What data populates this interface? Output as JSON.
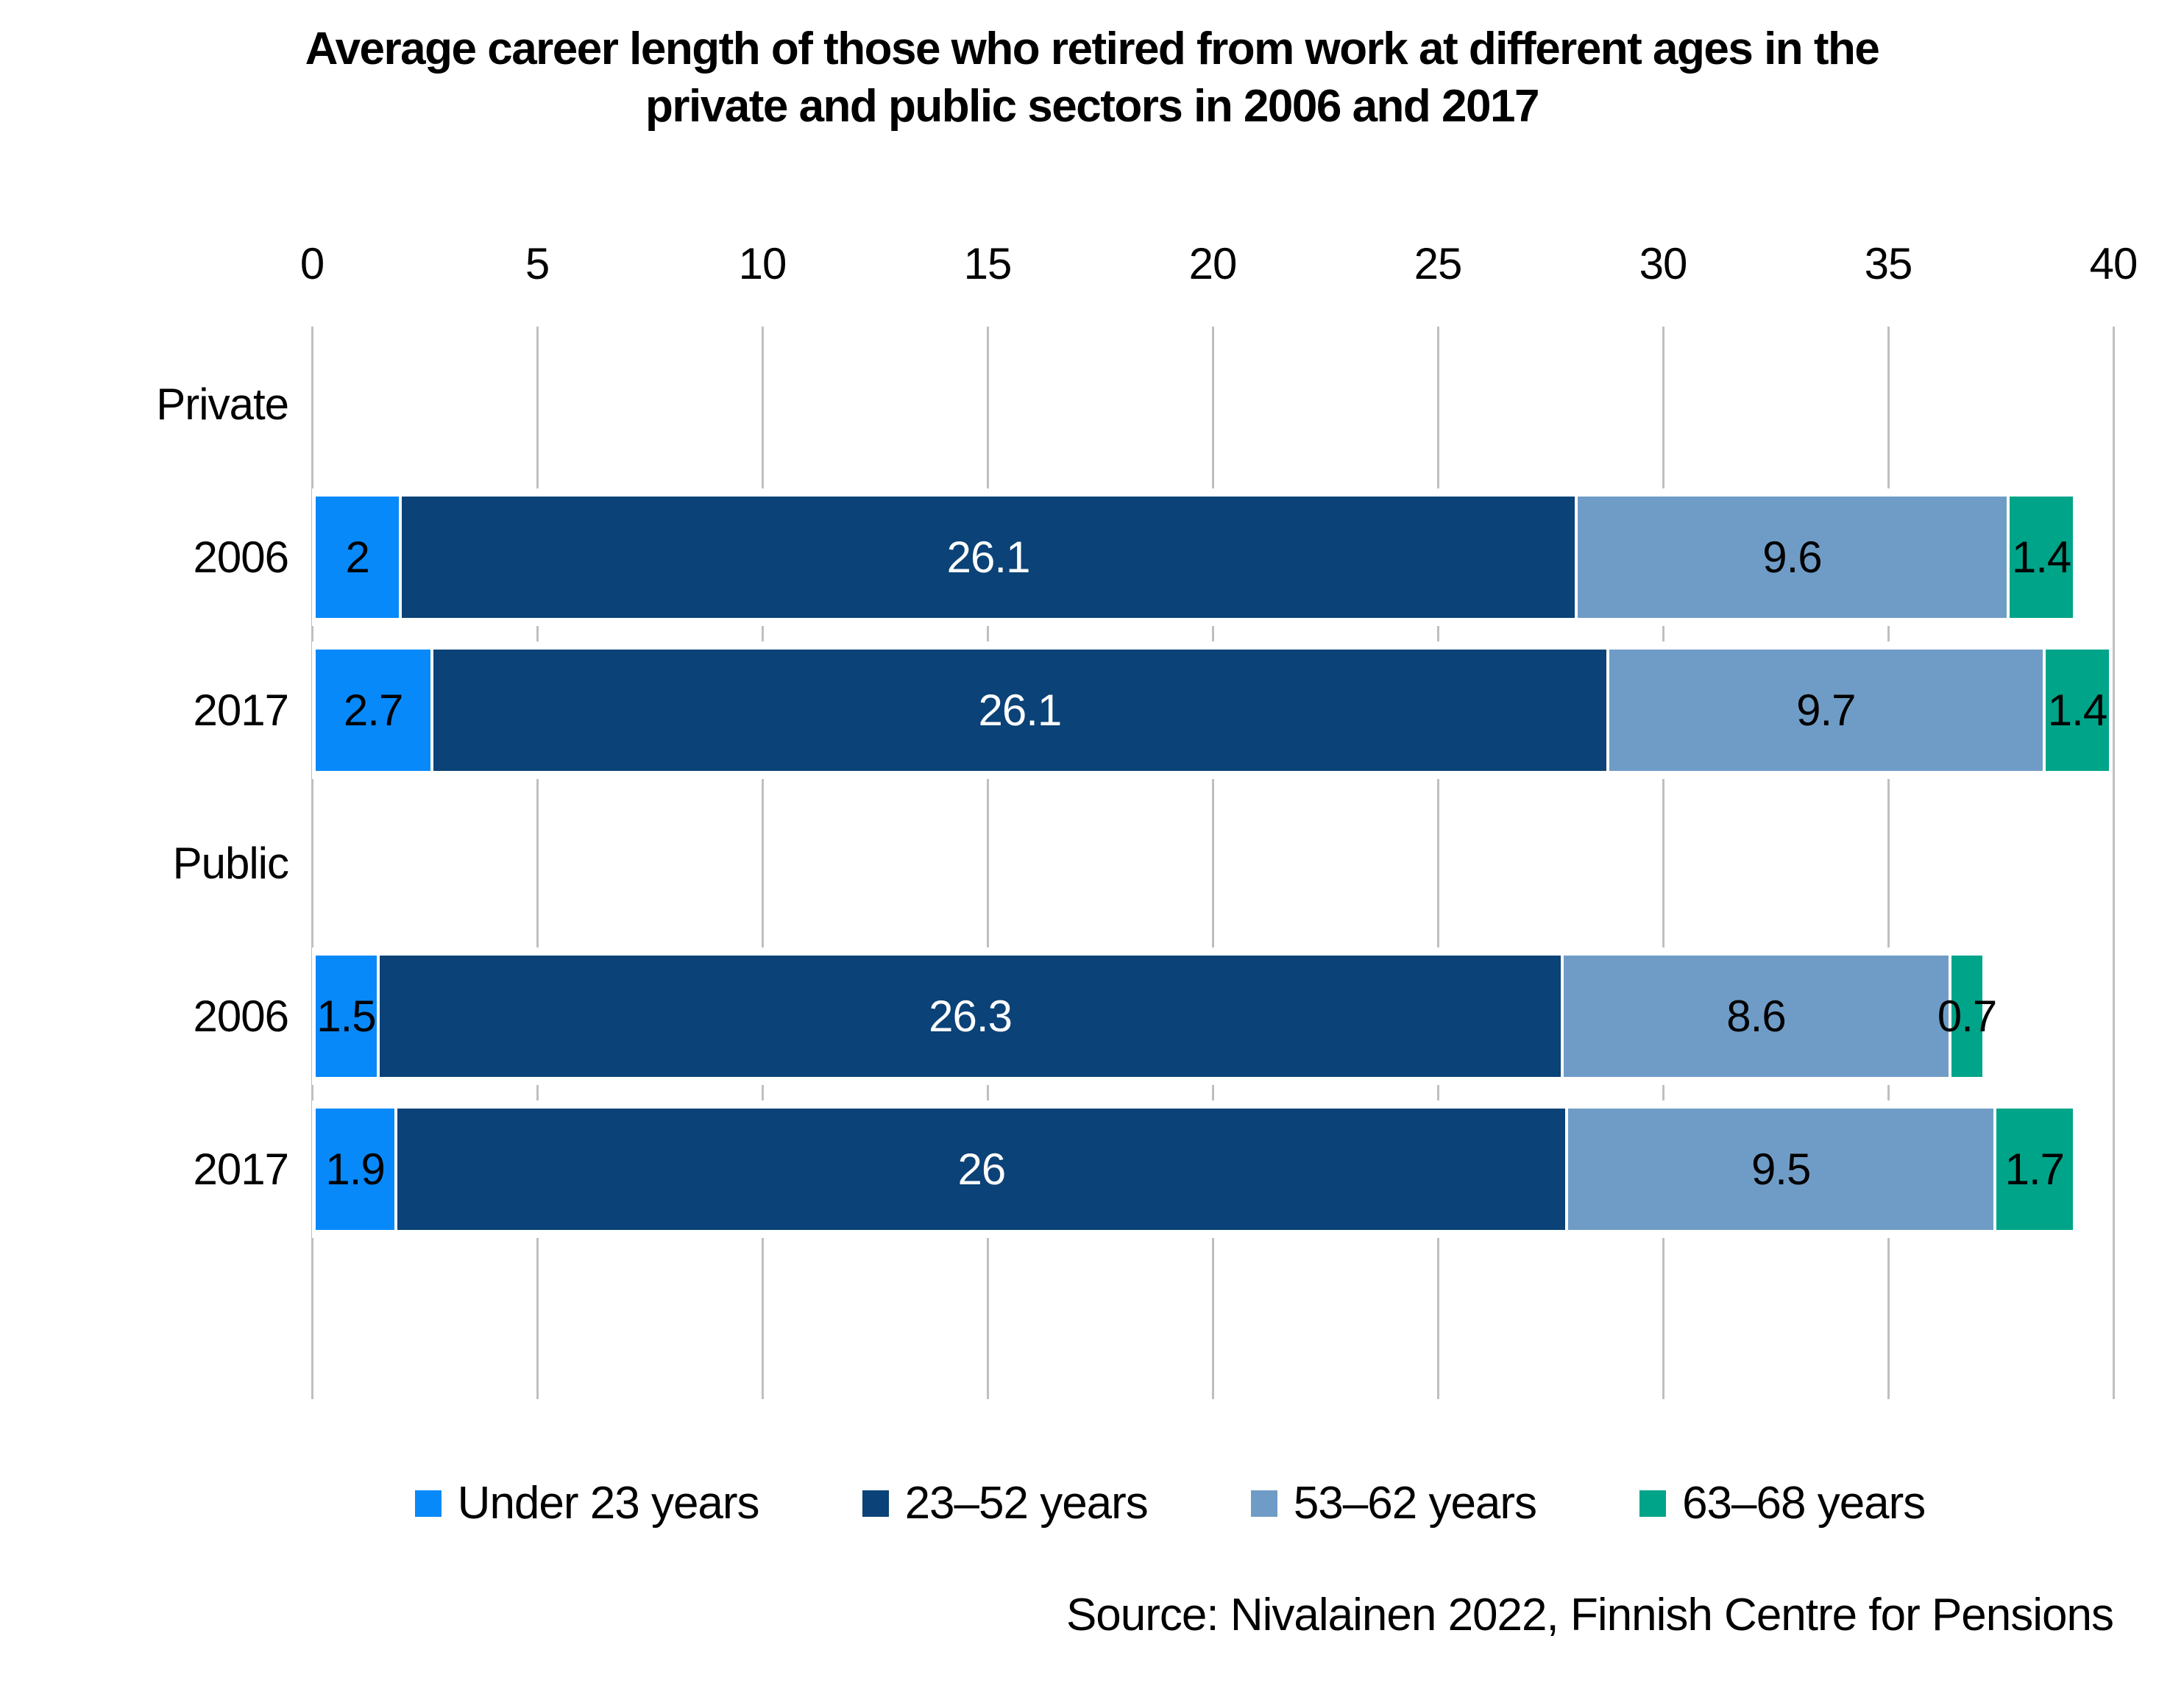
{
  "title": {
    "line1": "Average career length of those who retired from work at different ages in the",
    "line2": "private and public sectors in 2006 and 2017"
  },
  "source": "Source: Nivalainen 2022, Finnish Centre for Pensions",
  "chart_data": {
    "type": "bar",
    "orientation": "horizontal",
    "stacked": true,
    "title": "Average career length of those who retired from work at different ages in the private and public sectors in 2006 and 2017",
    "xlim": [
      0,
      40
    ],
    "x_ticks": [
      0,
      5,
      10,
      15,
      20,
      25,
      30,
      35,
      40
    ],
    "grid": true,
    "grid_color": "#bfbfbf",
    "legend_position": "bottom",
    "series": [
      {
        "name": "Under 23 years",
        "color": "#0789fa",
        "label_color": "#000000"
      },
      {
        "name": "23–52 years",
        "color": "#0b4277",
        "label_color": "#ffffff"
      },
      {
        "name": "53–62 years",
        "color": "#6f9cc6",
        "label_color": "#000000"
      },
      {
        "name": "63–68 years",
        "color": "#00a489",
        "label_color": "#000000"
      }
    ],
    "rows": [
      {
        "kind": "group",
        "label": "Private"
      },
      {
        "kind": "data",
        "group": "Private",
        "label": "2006",
        "values": [
          2,
          26.1,
          9.6,
          1.4
        ]
      },
      {
        "kind": "data",
        "group": "Private",
        "label": "2017",
        "values": [
          2.7,
          26.1,
          9.7,
          1.4
        ]
      },
      {
        "kind": "group",
        "label": "Public"
      },
      {
        "kind": "data",
        "group": "Public",
        "label": "2006",
        "values": [
          1.5,
          26.3,
          8.6,
          0.7
        ]
      },
      {
        "kind": "data",
        "group": "Public",
        "label": "2017",
        "values": [
          1.9,
          26,
          9.5,
          1.7
        ]
      }
    ]
  }
}
